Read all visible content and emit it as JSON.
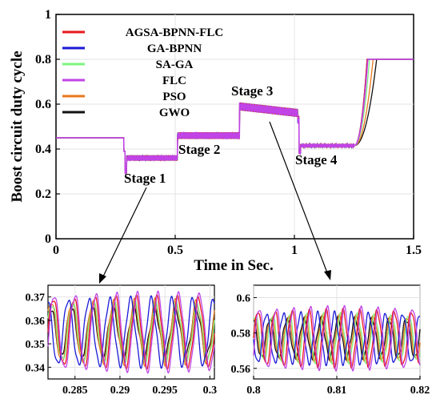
{
  "chart_data": [
    {
      "id": "main",
      "type": "line",
      "xlabel": "Time in Sec.",
      "ylabel": "Boost circuit duty cycle",
      "xlim": [
        0,
        1.5
      ],
      "ylim": [
        0,
        1
      ],
      "xticks": [
        0,
        0.5,
        1,
        1.5
      ],
      "xtick_labels": [
        "0",
        "0.5",
        "1",
        "1.5"
      ],
      "yticks": [
        0,
        0.2,
        0.4,
        0.6,
        0.8,
        1
      ],
      "ytick_labels": [
        "0",
        "0.2",
        "0.4",
        "0.6",
        "0.8",
        "1"
      ],
      "grid": true,
      "legend_position": "top-left",
      "series": [
        {
          "name": "AGSA-BPNN-FLC",
          "color": "#e8191c",
          "rise_end": 1.305
        },
        {
          "name": "GA-BPNN",
          "color": "#1a1ad6",
          "rise_end": 1.305
        },
        {
          "name": "SA-GA",
          "color": "#7ef57e",
          "rise_end": 1.315
        },
        {
          "name": "FLC",
          "color": "#c044e6",
          "rise_end": 1.308
        },
        {
          "name": "PSO",
          "color": "#e8791c",
          "rise_end": 1.33
        },
        {
          "name": "GWO",
          "color": "#111111",
          "rise_end": 1.345
        }
      ],
      "profile": [
        {
          "t_start": 0,
          "t_end": 0.29,
          "level": 0.45
        },
        {
          "t_start": 0.29,
          "t_end": 0.51,
          "level": 0.36,
          "ripple": 0.012
        },
        {
          "t_start": 0.51,
          "t_end": 0.77,
          "level": 0.46,
          "ripple": 0.015
        },
        {
          "t_start": 0.77,
          "t_end": 1.02,
          "level_start": 0.59,
          "level_end": 0.56,
          "ripple": 0.018
        },
        {
          "t_start": 1.02,
          "t_end": 1.25,
          "level": 0.415,
          "ripple": 0.008
        },
        {
          "t_start": 1.25,
          "t_end": 1.5,
          "final": 0.8
        }
      ],
      "annotations": [
        "Stage 1",
        "Stage 2",
        "Stage 3",
        "Stage 4"
      ]
    },
    {
      "id": "zoom-stage1",
      "type": "line",
      "xlim": [
        0.282,
        0.3005
      ],
      "ylim": [
        0.335,
        0.375
      ],
      "xticks": [
        0.285,
        0.29,
        0.295,
        0.3
      ],
      "xtick_labels": [
        "0.285",
        "0.29",
        "0.295",
        "0.3"
      ],
      "yticks": [
        0.34,
        0.35,
        0.36,
        0.37
      ],
      "ytick_labels": [
        "0.34",
        "0.35",
        "0.36",
        "0.37"
      ],
      "grid": true,
      "center": 0.355,
      "period": 0.00231,
      "series": [
        {
          "name": "AGSA-BPNN-FLC",
          "amplitude": 0.0145,
          "phase": 0.0
        },
        {
          "name": "GA-BPNN",
          "amplitude": 0.014,
          "phase": 0.28
        },
        {
          "name": "SA-GA",
          "amplitude": 0.012,
          "phase": 0.06
        },
        {
          "name": "FLC",
          "amplitude": 0.016,
          "phase": -0.05
        },
        {
          "name": "PSO",
          "amplitude": 0.013,
          "phase": 0.1
        },
        {
          "name": "GWO",
          "amplitude": 0.01,
          "phase": 0.12
        }
      ]
    },
    {
      "id": "zoom-stage3",
      "type": "line",
      "xlim": [
        0.8,
        0.82
      ],
      "ylim": [
        0.554,
        0.607
      ],
      "xticks": [
        0.8,
        0.81,
        0.82
      ],
      "xtick_labels": [
        "0.8",
        "0.81",
        "0.82"
      ],
      "yticks": [
        0.56,
        0.58,
        0.6
      ],
      "ytick_labels": [
        "0.56",
        "0.58",
        "0.6"
      ],
      "grid": true,
      "center": 0.577,
      "period": 0.00205,
      "series": [
        {
          "name": "AGSA-BPNN-FLC",
          "amplitude": 0.0155,
          "phase": 0.0
        },
        {
          "name": "GA-BPNN",
          "amplitude": 0.014,
          "phase": 0.5
        },
        {
          "name": "SA-GA",
          "amplitude": 0.013,
          "phase": 0.15
        },
        {
          "name": "FLC",
          "amplitude": 0.017,
          "phase": -0.08
        },
        {
          "name": "PSO",
          "amplitude": 0.012,
          "phase": 0.22
        },
        {
          "name": "GWO",
          "amplitude": 0.011,
          "phase": 0.3
        }
      ]
    }
  ]
}
